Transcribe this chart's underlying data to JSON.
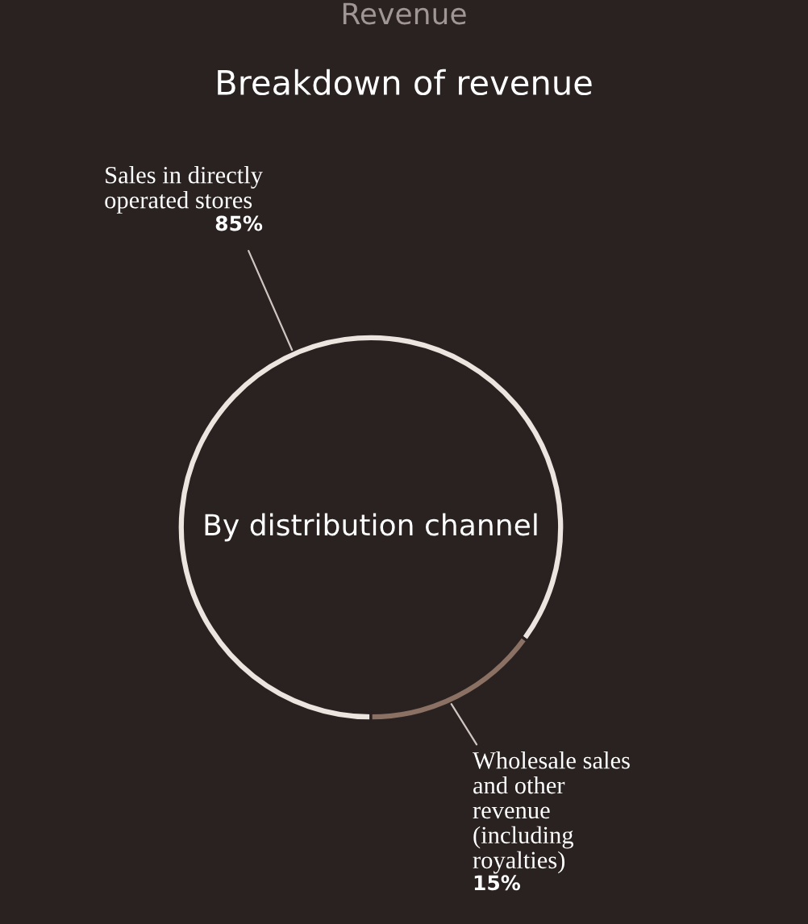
{
  "chart_data": {
    "type": "donut",
    "title": "Revenue",
    "subtitle": "Breakdown of revenue",
    "categories": [
      "Sales in directly\noperated stores",
      "Wholesale sales\nand other\nrevenue\n(including\nroyalties)"
    ],
    "values": [
      85,
      15
    ],
    "colors": [
      "#ece4df",
      "#8b7163"
    ],
    "value_labels": [
      "85%",
      "15%"
    ],
    "annotations": [
      "By distribution channel"
    ]
  }
}
